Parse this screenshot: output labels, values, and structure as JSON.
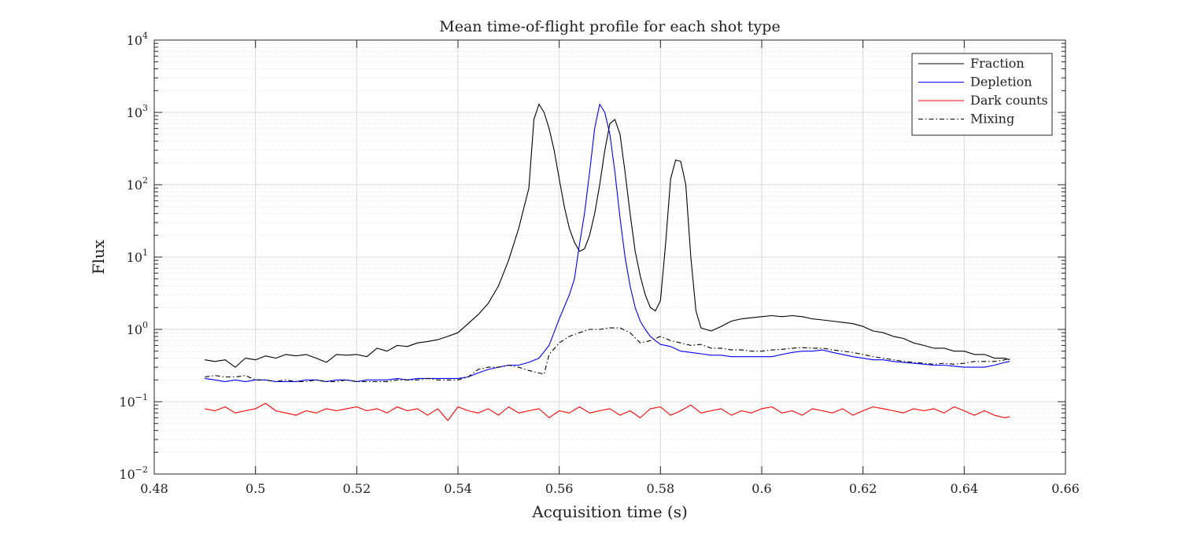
{
  "chart_data": {
    "type": "line",
    "title": "Mean time-of-flight profile for each shot type",
    "xlabel": "Acquisition time (s)",
    "ylabel": "Flux",
    "xlim": [
      0.48,
      0.66
    ],
    "ylim": [
      0.01,
      10000
    ],
    "yscale": "log",
    "grid": true,
    "legend_position": "top-right",
    "x_ticks": [
      0.48,
      0.5,
      0.52,
      0.54,
      0.56,
      0.58,
      0.6,
      0.62,
      0.64,
      0.66
    ],
    "x_tick_labels": [
      "0.48",
      "0.5",
      "0.52",
      "0.54",
      "0.56",
      "0.58",
      "0.6",
      "0.62",
      "0.64",
      "0.66"
    ],
    "y_ticks": [
      {
        "value": 0.01,
        "base": "10",
        "exp": "−2"
      },
      {
        "value": 0.1,
        "base": "10",
        "exp": "−1"
      },
      {
        "value": 1,
        "base": "10",
        "exp": "0"
      },
      {
        "value": 10,
        "base": "10",
        "exp": "1"
      },
      {
        "value": 100,
        "base": "10",
        "exp": "2"
      },
      {
        "value": 1000,
        "base": "10",
        "exp": "3"
      },
      {
        "value": 10000,
        "base": "10",
        "exp": "4"
      }
    ],
    "series": [
      {
        "name": "Fraction",
        "color": "#000000",
        "dash": "solid",
        "x": [
          0.49,
          0.492,
          0.494,
          0.496,
          0.498,
          0.5,
          0.502,
          0.504,
          0.506,
          0.508,
          0.51,
          0.512,
          0.514,
          0.516,
          0.518,
          0.52,
          0.522,
          0.524,
          0.526,
          0.528,
          0.53,
          0.532,
          0.534,
          0.536,
          0.538,
          0.54,
          0.542,
          0.544,
          0.546,
          0.548,
          0.55,
          0.552,
          0.554,
          0.555,
          0.556,
          0.557,
          0.558,
          0.559,
          0.56,
          0.561,
          0.562,
          0.563,
          0.564,
          0.565,
          0.566,
          0.567,
          0.568,
          0.569,
          0.57,
          0.571,
          0.572,
          0.573,
          0.574,
          0.575,
          0.576,
          0.577,
          0.578,
          0.579,
          0.58,
          0.581,
          0.582,
          0.583,
          0.584,
          0.585,
          0.586,
          0.587,
          0.588,
          0.59,
          0.592,
          0.594,
          0.596,
          0.598,
          0.6,
          0.602,
          0.604,
          0.606,
          0.608,
          0.61,
          0.612,
          0.614,
          0.616,
          0.618,
          0.62,
          0.622,
          0.624,
          0.626,
          0.628,
          0.63,
          0.632,
          0.634,
          0.636,
          0.638,
          0.64,
          0.642,
          0.644,
          0.646,
          0.648,
          0.649
        ],
        "y": [
          0.38,
          0.36,
          0.38,
          0.3,
          0.4,
          0.38,
          0.43,
          0.4,
          0.45,
          0.43,
          0.45,
          0.4,
          0.35,
          0.45,
          0.44,
          0.45,
          0.42,
          0.55,
          0.5,
          0.6,
          0.58,
          0.65,
          0.68,
          0.72,
          0.8,
          0.9,
          1.2,
          1.6,
          2.3,
          4.0,
          9.0,
          25,
          90,
          800,
          1300,
          1000,
          600,
          300,
          120,
          50,
          25,
          16,
          12,
          13,
          20,
          40,
          100,
          300,
          700,
          800,
          500,
          150,
          40,
          12,
          5.5,
          3.0,
          2.0,
          1.8,
          2.5,
          15,
          120,
          220,
          210,
          100,
          10,
          1.8,
          1.05,
          0.95,
          1.1,
          1.3,
          1.4,
          1.45,
          1.5,
          1.55,
          1.5,
          1.55,
          1.5,
          1.4,
          1.35,
          1.3,
          1.25,
          1.2,
          1.1,
          0.95,
          0.9,
          0.8,
          0.75,
          0.65,
          0.6,
          0.55,
          0.55,
          0.5,
          0.5,
          0.45,
          0.45,
          0.4,
          0.4,
          0.38
        ]
      },
      {
        "name": "Depletion",
        "color": "#0000ff",
        "dash": "solid",
        "x": [
          0.49,
          0.492,
          0.494,
          0.496,
          0.498,
          0.5,
          0.502,
          0.504,
          0.506,
          0.508,
          0.51,
          0.512,
          0.514,
          0.516,
          0.518,
          0.52,
          0.522,
          0.524,
          0.526,
          0.528,
          0.53,
          0.532,
          0.534,
          0.536,
          0.538,
          0.54,
          0.542,
          0.544,
          0.546,
          0.548,
          0.55,
          0.552,
          0.554,
          0.556,
          0.558,
          0.56,
          0.562,
          0.563,
          0.564,
          0.565,
          0.566,
          0.567,
          0.568,
          0.569,
          0.57,
          0.571,
          0.572,
          0.573,
          0.574,
          0.575,
          0.576,
          0.577,
          0.578,
          0.579,
          0.58,
          0.582,
          0.584,
          0.586,
          0.588,
          0.59,
          0.592,
          0.594,
          0.596,
          0.598,
          0.6,
          0.602,
          0.604,
          0.606,
          0.608,
          0.61,
          0.612,
          0.614,
          0.616,
          0.618,
          0.62,
          0.622,
          0.624,
          0.626,
          0.628,
          0.63,
          0.632,
          0.634,
          0.636,
          0.638,
          0.64,
          0.642,
          0.644,
          0.646,
          0.648,
          0.649
        ],
        "y": [
          0.21,
          0.2,
          0.19,
          0.2,
          0.19,
          0.2,
          0.2,
          0.19,
          0.19,
          0.19,
          0.2,
          0.2,
          0.19,
          0.2,
          0.2,
          0.19,
          0.2,
          0.2,
          0.2,
          0.21,
          0.2,
          0.21,
          0.21,
          0.21,
          0.21,
          0.21,
          0.22,
          0.25,
          0.28,
          0.3,
          0.32,
          0.32,
          0.35,
          0.4,
          0.6,
          1.4,
          3.0,
          5.0,
          15,
          40,
          150,
          600,
          1300,
          1000,
          500,
          150,
          35,
          10,
          4.0,
          2.0,
          1.3,
          1.0,
          0.8,
          0.7,
          0.62,
          0.58,
          0.5,
          0.48,
          0.46,
          0.44,
          0.44,
          0.42,
          0.42,
          0.42,
          0.42,
          0.42,
          0.45,
          0.48,
          0.5,
          0.5,
          0.52,
          0.48,
          0.45,
          0.42,
          0.4,
          0.38,
          0.38,
          0.36,
          0.35,
          0.34,
          0.33,
          0.32,
          0.32,
          0.31,
          0.3,
          0.3,
          0.3,
          0.32,
          0.35,
          0.36
        ]
      },
      {
        "name": "Dark counts",
        "color": "#ff0000",
        "dash": "solid",
        "x": [
          0.49,
          0.492,
          0.494,
          0.496,
          0.498,
          0.5,
          0.502,
          0.504,
          0.506,
          0.508,
          0.51,
          0.512,
          0.514,
          0.516,
          0.518,
          0.52,
          0.522,
          0.524,
          0.526,
          0.528,
          0.53,
          0.532,
          0.534,
          0.536,
          0.538,
          0.54,
          0.542,
          0.544,
          0.546,
          0.548,
          0.55,
          0.552,
          0.554,
          0.556,
          0.558,
          0.56,
          0.562,
          0.564,
          0.566,
          0.568,
          0.57,
          0.572,
          0.574,
          0.576,
          0.578,
          0.58,
          0.582,
          0.584,
          0.586,
          0.588,
          0.59,
          0.592,
          0.594,
          0.596,
          0.598,
          0.6,
          0.602,
          0.604,
          0.606,
          0.608,
          0.61,
          0.612,
          0.614,
          0.616,
          0.618,
          0.62,
          0.622,
          0.624,
          0.626,
          0.628,
          0.63,
          0.632,
          0.634,
          0.636,
          0.638,
          0.64,
          0.642,
          0.644,
          0.646,
          0.648,
          0.649
        ],
        "y": [
          0.08,
          0.075,
          0.085,
          0.07,
          0.075,
          0.08,
          0.095,
          0.075,
          0.07,
          0.065,
          0.075,
          0.07,
          0.08,
          0.075,
          0.08,
          0.085,
          0.075,
          0.08,
          0.07,
          0.085,
          0.075,
          0.08,
          0.065,
          0.08,
          0.055,
          0.085,
          0.075,
          0.07,
          0.08,
          0.065,
          0.085,
          0.07,
          0.075,
          0.08,
          0.06,
          0.075,
          0.07,
          0.085,
          0.07,
          0.075,
          0.08,
          0.065,
          0.075,
          0.06,
          0.08,
          0.085,
          0.065,
          0.075,
          0.09,
          0.07,
          0.075,
          0.08,
          0.065,
          0.075,
          0.07,
          0.08,
          0.085,
          0.07,
          0.075,
          0.065,
          0.08,
          0.075,
          0.07,
          0.08,
          0.065,
          0.075,
          0.085,
          0.08,
          0.075,
          0.07,
          0.08,
          0.075,
          0.08,
          0.07,
          0.085,
          0.075,
          0.065,
          0.075,
          0.065,
          0.06,
          0.062
        ]
      },
      {
        "name": "Mixing",
        "color": "#000000",
        "dash": "dashdot",
        "x": [
          0.49,
          0.492,
          0.494,
          0.496,
          0.498,
          0.5,
          0.502,
          0.504,
          0.506,
          0.508,
          0.51,
          0.512,
          0.514,
          0.516,
          0.518,
          0.52,
          0.522,
          0.524,
          0.526,
          0.528,
          0.53,
          0.532,
          0.534,
          0.536,
          0.538,
          0.54,
          0.542,
          0.544,
          0.546,
          0.548,
          0.55,
          0.552,
          0.554,
          0.556,
          0.557,
          0.558,
          0.56,
          0.562,
          0.564,
          0.566,
          0.568,
          0.57,
          0.572,
          0.574,
          0.576,
          0.578,
          0.58,
          0.582,
          0.584,
          0.586,
          0.588,
          0.59,
          0.592,
          0.594,
          0.596,
          0.598,
          0.6,
          0.602,
          0.604,
          0.606,
          0.608,
          0.61,
          0.612,
          0.614,
          0.616,
          0.618,
          0.62,
          0.622,
          0.624,
          0.626,
          0.628,
          0.63,
          0.632,
          0.634,
          0.636,
          0.638,
          0.64,
          0.642,
          0.644,
          0.646,
          0.648,
          0.649
        ],
        "y": [
          0.22,
          0.23,
          0.22,
          0.22,
          0.23,
          0.2,
          0.2,
          0.19,
          0.2,
          0.19,
          0.19,
          0.2,
          0.19,
          0.19,
          0.2,
          0.19,
          0.19,
          0.19,
          0.19,
          0.2,
          0.2,
          0.2,
          0.21,
          0.2,
          0.2,
          0.2,
          0.22,
          0.28,
          0.3,
          0.3,
          0.32,
          0.3,
          0.27,
          0.25,
          0.24,
          0.45,
          0.65,
          0.8,
          0.9,
          1.0,
          1.0,
          1.05,
          1.05,
          0.9,
          0.65,
          0.7,
          0.8,
          0.7,
          0.65,
          0.6,
          0.62,
          0.55,
          0.55,
          0.52,
          0.52,
          0.5,
          0.5,
          0.52,
          0.53,
          0.55,
          0.56,
          0.55,
          0.55,
          0.52,
          0.5,
          0.48,
          0.45,
          0.42,
          0.4,
          0.38,
          0.36,
          0.35,
          0.34,
          0.33,
          0.34,
          0.33,
          0.34,
          0.36,
          0.36,
          0.36,
          0.38,
          0.4
        ]
      }
    ]
  }
}
